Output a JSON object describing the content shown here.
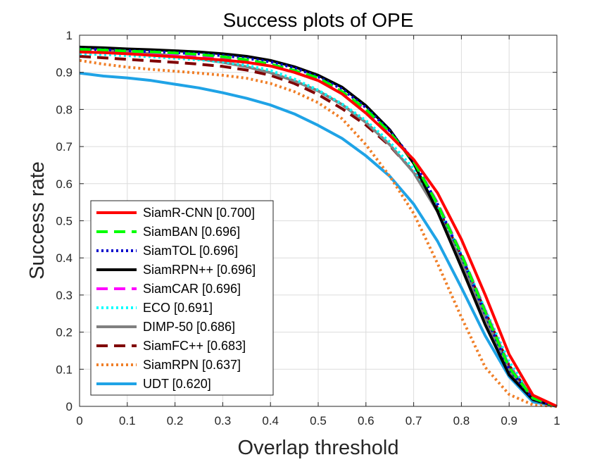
{
  "chart_data": {
    "type": "line",
    "title": "Success plots of OPE",
    "xlabel": "Overlap threshold",
    "ylabel": "Success rate",
    "xlim": [
      0,
      1
    ],
    "ylim": [
      0,
      1
    ],
    "grid": true,
    "legend_position": "bottom-left",
    "x_ticks": [
      "0",
      "0.1",
      "0.2",
      "0.3",
      "0.4",
      "0.5",
      "0.6",
      "0.7",
      "0.8",
      "0.9",
      "1"
    ],
    "y_ticks": [
      "0",
      "0.1",
      "0.2",
      "0.3",
      "0.4",
      "0.5",
      "0.6",
      "0.7",
      "0.8",
      "0.9",
      "1"
    ],
    "x": [
      0,
      0.05,
      0.1,
      0.15,
      0.2,
      0.25,
      0.3,
      0.35,
      0.4,
      0.45,
      0.5,
      0.55,
      0.6,
      0.65,
      0.7,
      0.75,
      0.8,
      0.85,
      0.9,
      0.95,
      1.0
    ],
    "series": [
      {
        "name": "SiamR-CNN [0.700]",
        "color": "#ff0000",
        "dash": "solid",
        "width": 4,
        "values": [
          0.955,
          0.953,
          0.95,
          0.946,
          0.942,
          0.938,
          0.933,
          0.927,
          0.917,
          0.9,
          0.878,
          0.842,
          0.79,
          0.73,
          0.665,
          0.575,
          0.45,
          0.3,
          0.14,
          0.03,
          0.0
        ]
      },
      {
        "name": "SiamBAN [0.696]",
        "color": "#00ff00",
        "dash": "dashed",
        "width": 4,
        "values": [
          0.962,
          0.96,
          0.957,
          0.955,
          0.952,
          0.948,
          0.942,
          0.934,
          0.922,
          0.905,
          0.885,
          0.848,
          0.8,
          0.738,
          0.66,
          0.545,
          0.41,
          0.255,
          0.105,
          0.022,
          0.0
        ]
      },
      {
        "name": "SiamTOL [0.696]",
        "color": "#0000cc",
        "dash": "dotted",
        "width": 4,
        "values": [
          0.963,
          0.961,
          0.958,
          0.956,
          0.953,
          0.95,
          0.945,
          0.938,
          0.928,
          0.912,
          0.888,
          0.855,
          0.805,
          0.742,
          0.662,
          0.545,
          0.405,
          0.248,
          0.1,
          0.02,
          0.0
        ]
      },
      {
        "name": "SiamRPN++ [0.696]",
        "color": "#000000",
        "dash": "solid",
        "width": 4,
        "values": [
          0.968,
          0.966,
          0.963,
          0.961,
          0.958,
          0.955,
          0.95,
          0.943,
          0.932,
          0.915,
          0.892,
          0.86,
          0.81,
          0.745,
          0.655,
          0.525,
          0.375,
          0.22,
          0.085,
          0.018,
          0.0
        ]
      },
      {
        "name": "SiamCAR [0.696]",
        "color": "#ff00ff",
        "dash": "dashed",
        "width": 4,
        "values": [
          0.96,
          0.958,
          0.955,
          0.952,
          0.949,
          0.945,
          0.94,
          0.932,
          0.92,
          0.902,
          0.88,
          0.847,
          0.8,
          0.74,
          0.662,
          0.548,
          0.412,
          0.258,
          0.108,
          0.022,
          0.0
        ]
      },
      {
        "name": "ECO [0.691]",
        "color": "#00ffff",
        "dash": "dotted",
        "width": 4,
        "values": [
          0.95,
          0.948,
          0.945,
          0.942,
          0.938,
          0.934,
          0.928,
          0.919,
          0.905,
          0.882,
          0.852,
          0.815,
          0.77,
          0.712,
          0.64,
          0.54,
          0.408,
          0.26,
          0.12,
          0.025,
          0.0
        ]
      },
      {
        "name": "DIMP-50 [0.686]",
        "color": "#808080",
        "dash": "solid",
        "width": 4,
        "values": [
          0.968,
          0.962,
          0.955,
          0.95,
          0.944,
          0.936,
          0.927,
          0.915,
          0.899,
          0.877,
          0.85,
          0.813,
          0.765,
          0.705,
          0.63,
          0.525,
          0.39,
          0.24,
          0.095,
          0.018,
          0.0
        ]
      },
      {
        "name": "SiamFC++ [0.683]",
        "color": "#800000",
        "dash": "dashed",
        "width": 4,
        "values": [
          0.943,
          0.939,
          0.935,
          0.931,
          0.927,
          0.922,
          0.916,
          0.906,
          0.892,
          0.87,
          0.84,
          0.802,
          0.758,
          0.702,
          0.632,
          0.535,
          0.405,
          0.255,
          0.11,
          0.022,
          0.0
        ]
      },
      {
        "name": "SiamRPN [0.637]",
        "color": "#f07f28",
        "dash": "dotted",
        "width": 4,
        "values": [
          0.932,
          0.922,
          0.914,
          0.908,
          0.903,
          0.898,
          0.892,
          0.884,
          0.87,
          0.848,
          0.818,
          0.775,
          0.705,
          0.62,
          0.52,
          0.385,
          0.24,
          0.105,
          0.032,
          0.004,
          0.0
        ]
      },
      {
        "name": "UDT [0.620]",
        "color": "#1fa3e6",
        "dash": "solid",
        "width": 4,
        "values": [
          0.898,
          0.89,
          0.885,
          0.878,
          0.868,
          0.858,
          0.845,
          0.83,
          0.812,
          0.788,
          0.757,
          0.722,
          0.675,
          0.62,
          0.545,
          0.445,
          0.32,
          0.19,
          0.08,
          0.012,
          0.0
        ]
      }
    ]
  }
}
